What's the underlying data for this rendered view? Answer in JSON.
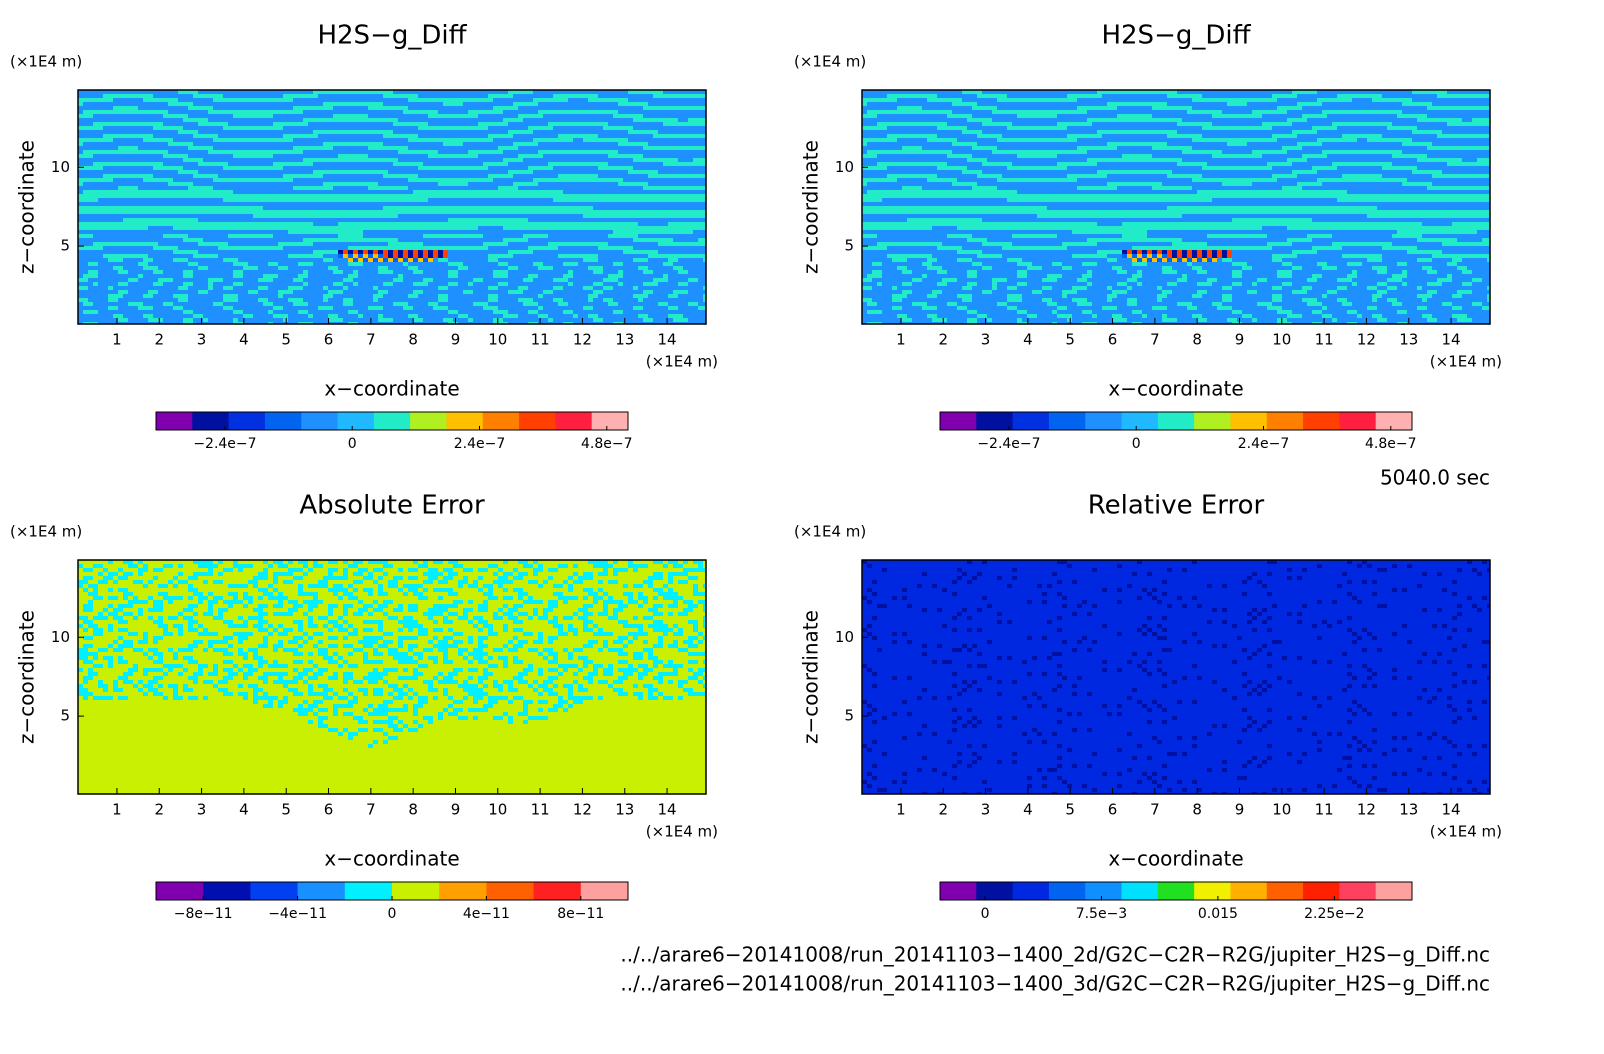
{
  "chart_data": [
    {
      "type": "contour",
      "title": "H2S−g_Diff",
      "xlabel": "x−coordinate",
      "ylabel": "z−coordinate",
      "x_unit": "(×1E4 m)",
      "y_unit": "(×1E4 m)",
      "xlim": [
        0.08,
        14.92
      ],
      "xticks": [
        1,
        2,
        3,
        4,
        5,
        6,
        7,
        8,
        9,
        10,
        11,
        12,
        13,
        14
      ],
      "ylim": [
        0.06,
        14.9
      ],
      "yticks": [
        5,
        10
      ],
      "colors": [
        "#8000b0",
        "#0010a0",
        "#0030e0",
        "#0064f0",
        "#1e90ff",
        "#20b8ff",
        "#22ecc8",
        "#b0f020",
        "#ffc000",
        "#ff8000",
        "#ff4000",
        "#ff2040",
        "#ffb0b0"
      ],
      "clim": [
        -3.7e-07,
        5.2e-07
      ],
      "cticks": [
        {
          "value": -2.4e-07,
          "label": "−2.4e−7"
        },
        0,
        {
          "value": 2.4e-07,
          "label": "2.4e−7"
        },
        {
          "value": 4.8e-07,
          "label": "4.8e−7"
        }
      ]
    },
    {
      "type": "contour",
      "title": "H2S−g_Diff",
      "xlabel": "x−coordinate",
      "ylabel": "z−coordinate",
      "x_unit": "(×1E4 m)",
      "y_unit": "(×1E4 m)",
      "xlim": [
        0.08,
        14.92
      ],
      "xticks": [
        1,
        2,
        3,
        4,
        5,
        6,
        7,
        8,
        9,
        10,
        11,
        12,
        13,
        14
      ],
      "ylim": [
        0.06,
        14.9
      ],
      "yticks": [
        5,
        10
      ],
      "colors": [
        "#8000b0",
        "#0010a0",
        "#0030e0",
        "#0064f0",
        "#1e90ff",
        "#20b8ff",
        "#22ecc8",
        "#b0f020",
        "#ffc000",
        "#ff8000",
        "#ff4000",
        "#ff2040",
        "#ffb0b0"
      ],
      "clim": [
        -3.7e-07,
        5.2e-07
      ],
      "cticks": [
        {
          "value": -2.4e-07,
          "label": "−2.4e−7"
        },
        0,
        {
          "value": 2.4e-07,
          "label": "2.4e−7"
        },
        {
          "value": 4.8e-07,
          "label": "4.8e−7"
        }
      ]
    },
    {
      "type": "contour",
      "title": "Absolute Error",
      "xlabel": "x−coordinate",
      "ylabel": "z−coordinate",
      "x_unit": "(×1E4 m)",
      "y_unit": "(×1E4 m)",
      "xlim": [
        0.08,
        14.92
      ],
      "xticks": [
        1,
        2,
        3,
        4,
        5,
        6,
        7,
        8,
        9,
        10,
        11,
        12,
        13,
        14
      ],
      "ylim": [
        0.06,
        14.9
      ],
      "yticks": [
        5,
        10
      ],
      "colors": [
        "#8000b0",
        "#0010b0",
        "#0040f0",
        "#1890ff",
        "#00f0ff",
        "#c8f000",
        "#ffa000",
        "#ff6000",
        "#ff2020",
        "#ffa0a0"
      ],
      "clim": [
        -1e-10,
        1e-10
      ],
      "cticks": [
        {
          "value": -8e-11,
          "label": "−8e−11"
        },
        {
          "value": -4e-11,
          "label": "−4e−11"
        },
        0,
        {
          "value": 4e-11,
          "label": "4e−11"
        },
        {
          "value": 8e-11,
          "label": "8e−11"
        }
      ]
    },
    {
      "type": "contour",
      "title": "Relative Error",
      "xlabel": "x−coordinate",
      "ylabel": "z−coordinate",
      "x_unit": "(×1E4 m)",
      "y_unit": "(×1E4 m)",
      "xlim": [
        0.08,
        14.92
      ],
      "xticks": [
        1,
        2,
        3,
        4,
        5,
        6,
        7,
        8,
        9,
        10,
        11,
        12,
        13,
        14
      ],
      "ylim": [
        0.06,
        14.9
      ],
      "yticks": [
        5,
        10
      ],
      "colors": [
        "#8000b0",
        "#0010a0",
        "#0028e0",
        "#0064f0",
        "#1090ff",
        "#00e0ff",
        "#20e020",
        "#f0f000",
        "#ffb000",
        "#ff6000",
        "#ff2000",
        "#ff4060",
        "#ffa0a0"
      ],
      "clim": [
        -0.0029,
        0.0275
      ],
      "cticks": [
        0,
        {
          "value": 0.0075,
          "label": "7.5e−3"
        },
        0.015,
        {
          "value": 0.0225,
          "label": "2.25e−2"
        }
      ]
    }
  ],
  "time": "5040.0 sec",
  "files": [
    "../../arare6−20141008/run_20141103−1400_2d/G2C−C2R−R2G/jupiter_H2S−g_Diff.nc",
    "../../arare6−20141008/run_20141103−1400_3d/G2C−C2R−R2G/jupiter_H2S−g_Diff.nc"
  ]
}
